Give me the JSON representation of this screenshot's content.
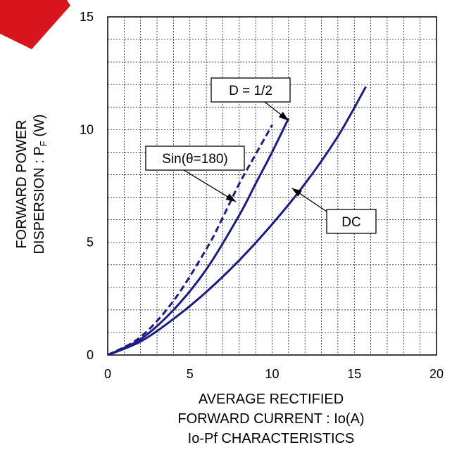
{
  "chart_data": {
    "type": "line",
    "title": "",
    "xlabel_lines": [
      "AVERAGE RECTIFIED",
      "FORWARD CURRENT : Io(A)"
    ],
    "caption": "Io-Pf CHARACTERISTICS",
    "ylabel_lines": [
      "FORWARD POWER",
      "DISPERSION : P",
      "F",
      " (W)"
    ],
    "xlim": [
      0,
      20
    ],
    "ylim": [
      0,
      15
    ],
    "x_tick_labels": [
      "0",
      "5",
      "10",
      "15",
      "20"
    ],
    "y_tick_labels": [
      "0",
      "5",
      "10",
      "15"
    ],
    "grid": true,
    "series": [
      {
        "name": "DC",
        "style": "solid",
        "x": [
          0,
          2,
          4,
          6,
          8,
          10,
          12,
          14,
          15.7
        ],
        "y": [
          0,
          0.6,
          1.6,
          2.8,
          4.2,
          5.8,
          7.6,
          9.7,
          11.9
        ]
      },
      {
        "name": "D = 1/2",
        "style": "solid",
        "x": [
          0,
          2,
          4,
          6,
          8,
          9,
          10,
          11
        ],
        "y": [
          0,
          0.7,
          2.0,
          3.8,
          6.2,
          7.6,
          9.0,
          10.5
        ]
      },
      {
        "name": "Sin(θ=180)",
        "style": "dashed",
        "x": [
          0,
          2,
          4,
          6,
          7,
          8,
          9,
          10
        ],
        "y": [
          0,
          0.8,
          2.4,
          4.7,
          6.1,
          7.6,
          8.9,
          10.2
        ]
      }
    ],
    "annotations": [
      {
        "text": "D = 1/2",
        "points_to": [
          11.0,
          10.4
        ]
      },
      {
        "text": "Sin(θ=180)",
        "points_to": [
          7.8,
          6.8
        ]
      },
      {
        "text": "DC",
        "points_to": [
          11.2,
          7.4
        ]
      }
    ],
    "colors": {
      "line": "#1c1c85",
      "grid": "#000000"
    }
  }
}
